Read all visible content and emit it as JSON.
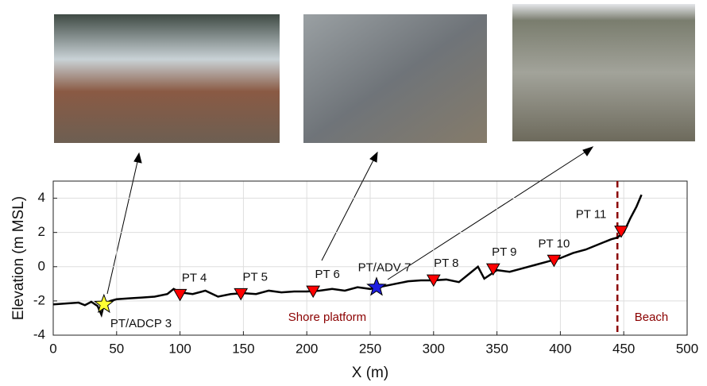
{
  "chart_data": {
    "type": "line",
    "xlabel": "X (m)",
    "ylabel": "Elevation (m MSL)",
    "xlim": [
      0,
      500
    ],
    "xticks": [
      0,
      50,
      100,
      150,
      200,
      250,
      300,
      350,
      400,
      450,
      500
    ],
    "ylim": [
      -4,
      5
    ],
    "yticks": [
      -4,
      -2,
      0,
      2,
      4
    ],
    "grid": true,
    "color": "#000000",
    "x": [
      0,
      10,
      20,
      25,
      30,
      35,
      38,
      40,
      45,
      50,
      60,
      70,
      80,
      90,
      95,
      100,
      110,
      120,
      130,
      140,
      150,
      160,
      170,
      180,
      190,
      200,
      210,
      220,
      230,
      240,
      250,
      260,
      270,
      280,
      290,
      300,
      310,
      320,
      330,
      335,
      340,
      350,
      360,
      370,
      380,
      390,
      400,
      410,
      420,
      430,
      440,
      445,
      450,
      455,
      460,
      464
    ],
    "values": [
      -2.2,
      -2.15,
      -2.1,
      -2.25,
      -2.05,
      -2.3,
      -2.8,
      -2.2,
      -2.0,
      -1.9,
      -1.85,
      -1.8,
      -1.75,
      -1.6,
      -1.3,
      -1.5,
      -1.6,
      -1.4,
      -1.75,
      -1.6,
      -1.55,
      -1.6,
      -1.4,
      -1.5,
      -1.45,
      -1.45,
      -1.4,
      -1.3,
      -1.4,
      -1.2,
      -1.3,
      -1.15,
      -1.0,
      -0.85,
      -0.8,
      -0.8,
      -0.75,
      -0.9,
      -0.3,
      0.0,
      -0.7,
      -0.2,
      -0.3,
      -0.1,
      0.1,
      0.3,
      0.5,
      0.8,
      1.0,
      1.3,
      1.6,
      1.7,
      2.0,
      2.8,
      3.5,
      4.2
    ],
    "instruments": [
      {
        "label": "PT/ADCP 3",
        "x": 40,
        "y": -2.2,
        "marker": "star",
        "color": "#ffff33"
      },
      {
        "label": "PT 4",
        "x": 100,
        "y": -1.7,
        "marker": "triangle",
        "color": "#ff0000"
      },
      {
        "label": "PT 5",
        "x": 148,
        "y": -1.65,
        "marker": "triangle",
        "color": "#ff0000"
      },
      {
        "label": "PT 6",
        "x": 205,
        "y": -1.5,
        "marker": "triangle",
        "color": "#ff0000"
      },
      {
        "label": "PT/ADV 7",
        "x": 255,
        "y": -1.2,
        "marker": "star",
        "color": "#1f1fe0"
      },
      {
        "label": "PT 8",
        "x": 300,
        "y": -0.85,
        "marker": "triangle",
        "color": "#ff0000"
      },
      {
        "label": "PT 9",
        "x": 347,
        "y": -0.2,
        "marker": "triangle",
        "color": "#ff0000"
      },
      {
        "label": "PT 10",
        "x": 395,
        "y": 0.3,
        "marker": "triangle",
        "color": "#ff0000"
      },
      {
        "label": "PT 11",
        "x": 448,
        "y": 2.0,
        "marker": "triangle",
        "color": "#ff0000"
      }
    ],
    "boundary": {
      "x": 445,
      "color": "#8b0000"
    },
    "annotations": [
      "Shore platform",
      "Beach"
    ]
  }
}
